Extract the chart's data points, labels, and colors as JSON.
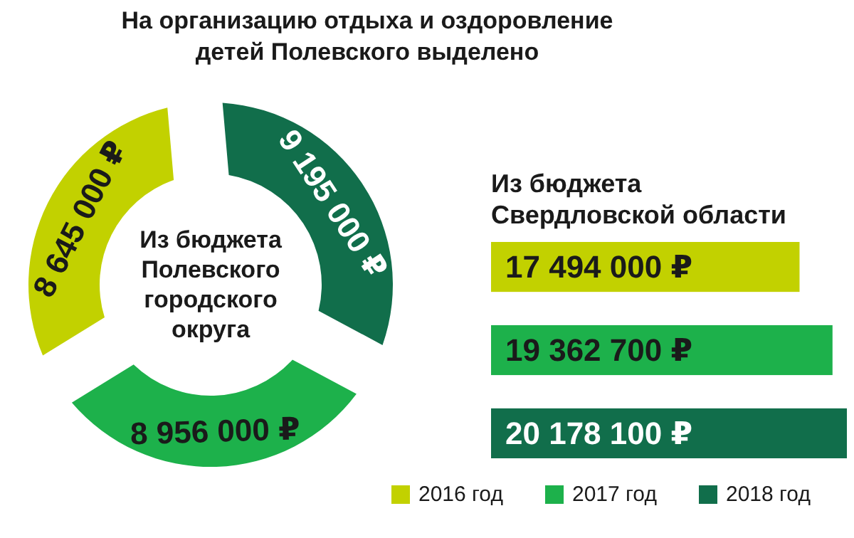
{
  "chart_data": [
    {
      "type": "donut",
      "title": "На организацию отдыха и оздоровление детей Полевского выделено",
      "categories": [
        "2016 год",
        "2017 год",
        "2018 год"
      ],
      "values": [
        8645000,
        8956000,
        9195000
      ],
      "colors": [
        "#c2d100",
        "#1db14b",
        "#116e4b"
      ],
      "value_labels": [
        "8 645 000 ₽",
        "8 956 000 ₽",
        "9 195 000 ₽"
      ],
      "annotations": [
        "Из бюджета Полевского городского округа"
      ],
      "legend": "bottom right"
    },
    {
      "type": "bar",
      "orientation": "horizontal",
      "title": "Из бюджета Свердловской области",
      "categories": [
        null,
        null,
        null
      ],
      "values": [
        17494000,
        19362700,
        20178100
      ],
      "colors": [
        "#c2d100",
        "#1db14b",
        "#116e4b"
      ],
      "value_labels": [
        "17 494 000 ₽",
        "19 362 700 ₽",
        "20 178 100 ₽"
      ]
    }
  ]
}
